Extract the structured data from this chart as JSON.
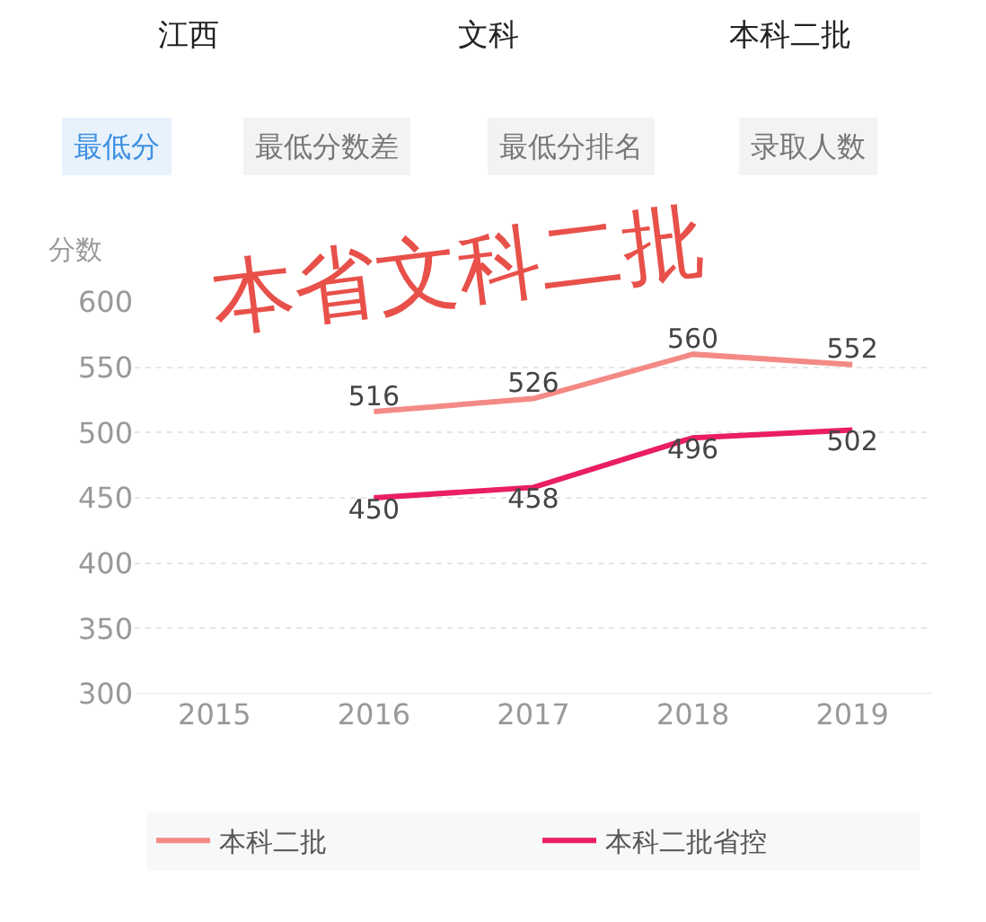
{
  "chart_data": {
    "type": "line",
    "categories": [
      "2015",
      "2016",
      "2017",
      "2018",
      "2019"
    ],
    "series": [
      {
        "name": "本科二批",
        "color": "#f48a85",
        "values": [
          null,
          516,
          526,
          560,
          552
        ]
      },
      {
        "name": "本科二批省控",
        "color": "#e91e63",
        "values": [
          null,
          450,
          458,
          496,
          502
        ]
      }
    ],
    "ylabel": "分数",
    "ylim": [
      300,
      600
    ],
    "yticks": [
      300,
      350,
      400,
      450,
      500,
      550,
      600
    ],
    "grid": "y",
    "legend": "bottom",
    "data_labels": true,
    "line_style": "solid",
    "marker": "none",
    "annotations": [
      "江西",
      "文科",
      "本科二批",
      "最低分",
      "最低分数差",
      "最低分排名",
      "录取人数",
      "本省文科二批"
    ]
  }
}
